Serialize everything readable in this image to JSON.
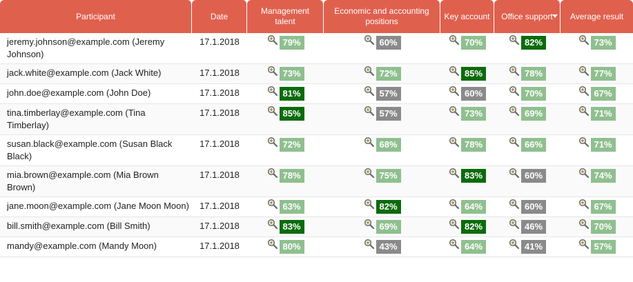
{
  "columns": {
    "participant": "Participant",
    "date": "Date",
    "management": "Management talent",
    "economic": "Economic and accounting positions",
    "key_account": "Key account",
    "office": "Office support",
    "average": "Average result"
  },
  "colors": {
    "header_bg": "#e0604e",
    "high": "#0b6b0b",
    "mid": "#8fbf8f",
    "low": "#8a8a8a"
  },
  "icons": {
    "score_detail": "magnifier-icon",
    "sort": "sort-desc-icon"
  },
  "rows": [
    {
      "participant": "jeremy.johnson@example.com (Jeremy Johnson)",
      "date": "17.1.2018",
      "scores": [
        {
          "value": "79%",
          "level": "mid"
        },
        {
          "value": "60%",
          "level": "low"
        },
        {
          "value": "70%",
          "level": "mid"
        },
        {
          "value": "82%",
          "level": "high"
        },
        {
          "value": "73%",
          "level": "mid"
        }
      ]
    },
    {
      "participant": "jack.white@example.com (Jack White)",
      "date": "17.1.2018",
      "scores": [
        {
          "value": "73%",
          "level": "mid"
        },
        {
          "value": "72%",
          "level": "mid"
        },
        {
          "value": "85%",
          "level": "high"
        },
        {
          "value": "78%",
          "level": "mid"
        },
        {
          "value": "77%",
          "level": "mid"
        }
      ]
    },
    {
      "participant": "john.doe@example.com (John Doe)",
      "date": "17.1.2018",
      "scores": [
        {
          "value": "81%",
          "level": "high"
        },
        {
          "value": "57%",
          "level": "low"
        },
        {
          "value": "60%",
          "level": "low"
        },
        {
          "value": "70%",
          "level": "mid"
        },
        {
          "value": "67%",
          "level": "mid"
        }
      ]
    },
    {
      "participant": "tina.timberlay@example.com (Tina Timberlay)",
      "date": "17.1.2018",
      "scores": [
        {
          "value": "85%",
          "level": "high"
        },
        {
          "value": "57%",
          "level": "low"
        },
        {
          "value": "73%",
          "level": "mid"
        },
        {
          "value": "69%",
          "level": "mid"
        },
        {
          "value": "71%",
          "level": "mid"
        }
      ]
    },
    {
      "participant": "susan.black@example.com (Susan Black Black)",
      "date": "17.1.2018",
      "scores": [
        {
          "value": "72%",
          "level": "mid"
        },
        {
          "value": "68%",
          "level": "mid"
        },
        {
          "value": "78%",
          "level": "mid"
        },
        {
          "value": "66%",
          "level": "mid"
        },
        {
          "value": "71%",
          "level": "mid"
        }
      ]
    },
    {
      "participant": "mia.brown@example.com (Mia Brown Brown)",
      "date": "17.1.2018",
      "scores": [
        {
          "value": "78%",
          "level": "mid"
        },
        {
          "value": "75%",
          "level": "mid"
        },
        {
          "value": "83%",
          "level": "high"
        },
        {
          "value": "60%",
          "level": "low"
        },
        {
          "value": "74%",
          "level": "mid"
        }
      ]
    },
    {
      "participant": "jane.moon@example.com (Jane Moon Moon)",
      "date": "17.1.2018",
      "scores": [
        {
          "value": "63%",
          "level": "mid"
        },
        {
          "value": "82%",
          "level": "high"
        },
        {
          "value": "64%",
          "level": "mid"
        },
        {
          "value": "60%",
          "level": "low"
        },
        {
          "value": "67%",
          "level": "mid"
        }
      ]
    },
    {
      "participant": "bill.smith@example.com (Bill Smith)",
      "date": "17.1.2018",
      "scores": [
        {
          "value": "83%",
          "level": "high"
        },
        {
          "value": "69%",
          "level": "mid"
        },
        {
          "value": "82%",
          "level": "high"
        },
        {
          "value": "46%",
          "level": "low"
        },
        {
          "value": "70%",
          "level": "mid"
        }
      ]
    },
    {
      "participant": "mandy@example.com (Mandy Moon)",
      "date": "17.1.2018",
      "scores": [
        {
          "value": "80%",
          "level": "mid"
        },
        {
          "value": "43%",
          "level": "low"
        },
        {
          "value": "64%",
          "level": "mid"
        },
        {
          "value": "41%",
          "level": "low"
        },
        {
          "value": "57%",
          "level": "mid"
        }
      ]
    }
  ]
}
